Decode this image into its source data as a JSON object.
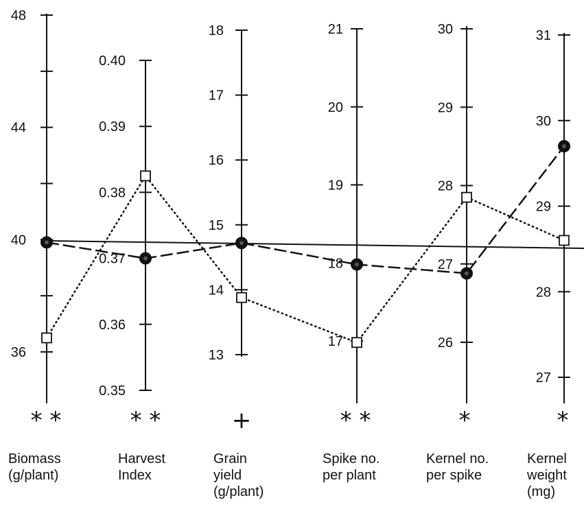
{
  "chart_data": {
    "type": "line",
    "axes": [
      {
        "label_lines": [
          "Biomass",
          "(g/plant)"
        ],
        "significance": "**",
        "ticks": [
          36,
          38,
          40,
          42,
          44,
          46,
          48
        ],
        "tick_labels": [
          "36",
          "",
          "40",
          "",
          "44",
          "",
          "48"
        ],
        "baseline": 40,
        "series_a": 39.9,
        "series_b": 36.5
      },
      {
        "label_lines": [
          "Harvest",
          "Index"
        ],
        "significance": "**",
        "ticks": [
          0.35,
          0.36,
          0.37,
          0.38,
          0.39,
          0.4
        ],
        "tick_labels": [
          "0.35",
          "0.36",
          "0.37",
          "0.38",
          "0.39",
          "0.40"
        ],
        "baseline": 0.3703,
        "series_a": 0.37,
        "series_b": 0.3825
      },
      {
        "label_lines": [
          "Grain",
          "yield",
          "(g/plant)"
        ],
        "significance": "+",
        "ticks": [
          13,
          14,
          15,
          16,
          17,
          18
        ],
        "tick_labels": [
          "13",
          "14",
          "15",
          "16",
          "17",
          "18"
        ],
        "baseline": 14.73,
        "series_a": 14.72,
        "series_b": 13.88
      },
      {
        "label_lines": [
          "Spike no.",
          "per plant"
        ],
        "significance": "**",
        "ticks": [
          17,
          18,
          19,
          20,
          21
        ],
        "tick_labels": [
          "17",
          "18",
          "19",
          "20",
          "21"
        ],
        "baseline": 18.2,
        "series_a": 17.98,
        "series_b": 16.98
      },
      {
        "label_lines": [
          "Kernel no.",
          "per spike"
        ],
        "significance": "*",
        "ticks": [
          26,
          27,
          28,
          29,
          30
        ],
        "tick_labels": [
          "26",
          "27",
          "28",
          "29",
          "30"
        ],
        "baseline": 27.15,
        "series_a": 26.88,
        "series_b": 27.85
      },
      {
        "label_lines": [
          "Kernel",
          "weight",
          "(mg)"
        ],
        "significance": "*",
        "ticks": [
          27,
          28,
          29,
          30,
          31
        ],
        "tick_labels": [
          "27",
          "28",
          "29",
          "30",
          "31"
        ],
        "baseline": 28.75,
        "series_a": 29.7,
        "series_b": 28.6
      }
    ],
    "series": [
      {
        "style": "dashed",
        "marker": "filled-circle"
      },
      {
        "style": "dotted",
        "marker": "open-square"
      }
    ],
    "grid": false
  }
}
